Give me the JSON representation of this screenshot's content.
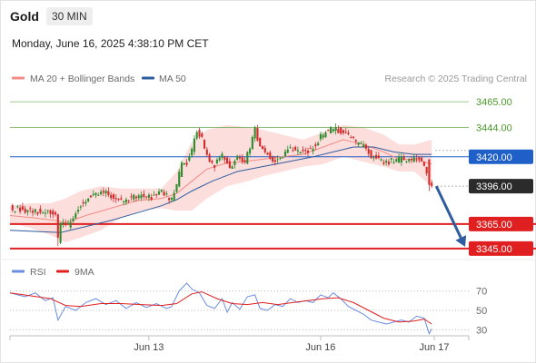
{
  "header": {
    "symbol": "Gold",
    "timeframe": "30 MIN",
    "datetime": "Monday, June 16, 2025 4:38:10 PM CET"
  },
  "source": "Research © 2025 Trading Central",
  "colors": {
    "ma20": "#f28b86",
    "ma50": "#2f5c9e",
    "band_fill": "#fbd3d0",
    "green_level": "#4a9a2a",
    "blue_level": "#1f5fc8",
    "red_level": "#e02020",
    "current": "#2b2b2b",
    "bull": "#2e8b2e",
    "bear": "#d32b2b",
    "arrow": "#2f5c9e",
    "rsi": "#6b8ee0",
    "rsi_ma": "#e02020"
  },
  "chart_data": [
    {
      "type": "candlestick",
      "title": "",
      "legend": [
        {
          "name": "MA 20 + Bollinger Bands",
          "color": "#f28b86"
        },
        {
          "name": "MA 50",
          "color": "#2f5c9e"
        }
      ],
      "y_axis_side": "right",
      "ylim": [
        3336,
        3474
      ],
      "levels": [
        {
          "value": 3465.0,
          "label": "3465.00",
          "kind": "resistance-minor",
          "color": "#4a9a2a"
        },
        {
          "value": 3444.0,
          "label": "3444.00",
          "kind": "resistance-minor",
          "color": "#4a9a2a"
        },
        {
          "value": 3420.0,
          "label": "3420.00",
          "kind": "pivot",
          "color": "#1f5fc8"
        },
        {
          "value": 3396.0,
          "label": "3396.00",
          "kind": "last-price",
          "color": "#2b2b2b"
        },
        {
          "value": 3365.0,
          "label": "3365.00",
          "kind": "target",
          "color": "#e02020"
        },
        {
          "value": 3345.0,
          "label": "3345.00",
          "kind": "target",
          "color": "#e02020"
        }
      ],
      "x_ticks": [
        "Jun 13",
        "Jun 16",
        "Jun 17"
      ],
      "projection": {
        "from": 3396.0,
        "to": 3345.0,
        "direction": "down"
      },
      "price_path": [
        [
          0,
          3378
        ],
        [
          5,
          3377
        ],
        [
          10,
          3376
        ],
        [
          15,
          3374
        ],
        [
          18,
          3372
        ],
        [
          19,
          3352
        ],
        [
          20,
          3366
        ],
        [
          23,
          3364
        ],
        [
          25,
          3370
        ],
        [
          29,
          3384
        ],
        [
          33,
          3390
        ],
        [
          37,
          3391
        ],
        [
          43,
          3384
        ],
        [
          47,
          3386
        ],
        [
          51,
          3388
        ],
        [
          56,
          3387
        ],
        [
          60,
          3392
        ],
        [
          64,
          3384
        ],
        [
          66,
          3398
        ],
        [
          68,
          3413
        ],
        [
          70,
          3415
        ],
        [
          72,
          3426
        ],
        [
          74,
          3440
        ],
        [
          76,
          3434
        ],
        [
          78,
          3420
        ],
        [
          81,
          3413
        ],
        [
          84,
          3420
        ],
        [
          87,
          3412
        ],
        [
          90,
          3420
        ],
        [
          93,
          3416
        ],
        [
          95,
          3428
        ],
        [
          97,
          3442
        ],
        [
          99,
          3428
        ],
        [
          102,
          3422
        ],
        [
          105,
          3416
        ],
        [
          108,
          3421
        ],
        [
          111,
          3428
        ],
        [
          114,
          3424
        ],
        [
          117,
          3424
        ],
        [
          120,
          3428
        ],
        [
          123,
          3436
        ],
        [
          125,
          3440
        ],
        [
          128,
          3443
        ],
        [
          131,
          3441
        ],
        [
          134,
          3436
        ],
        [
          137,
          3432
        ],
        [
          140,
          3428
        ],
        [
          143,
          3421
        ],
        [
          146,
          3418
        ],
        [
          149,
          3416
        ],
        [
          152,
          3417
        ],
        [
          155,
          3418
        ],
        [
          158,
          3417
        ],
        [
          161,
          3420
        ],
        [
          164,
          3414
        ],
        [
          166,
          3397
        ],
        [
          167,
          3396
        ]
      ],
      "ma20_path": [
        [
          0,
          3372
        ],
        [
          10,
          3370
        ],
        [
          18,
          3368
        ],
        [
          22,
          3366
        ],
        [
          30,
          3372
        ],
        [
          40,
          3378
        ],
        [
          50,
          3384
        ],
        [
          60,
          3386
        ],
        [
          66,
          3390
        ],
        [
          72,
          3400
        ],
        [
          78,
          3410
        ],
        [
          86,
          3415
        ],
        [
          92,
          3416
        ],
        [
          100,
          3418
        ],
        [
          108,
          3420
        ],
        [
          116,
          3422
        ],
        [
          124,
          3428
        ],
        [
          132,
          3434
        ],
        [
          140,
          3430
        ],
        [
          148,
          3424
        ],
        [
          154,
          3418
        ],
        [
          160,
          3418
        ],
        [
          167,
          3414
        ]
      ],
      "band_upper": [
        [
          0,
          3380
        ],
        [
          8,
          3382
        ],
        [
          16,
          3382
        ],
        [
          22,
          3386
        ],
        [
          28,
          3392
        ],
        [
          36,
          3396
        ],
        [
          44,
          3394
        ],
        [
          52,
          3394
        ],
        [
          60,
          3394
        ],
        [
          66,
          3408
        ],
        [
          72,
          3432
        ],
        [
          78,
          3442
        ],
        [
          86,
          3446
        ],
        [
          94,
          3444
        ],
        [
          100,
          3442
        ],
        [
          108,
          3438
        ],
        [
          116,
          3434
        ],
        [
          124,
          3440
        ],
        [
          132,
          3446
        ],
        [
          140,
          3444
        ],
        [
          148,
          3438
        ],
        [
          154,
          3430
        ],
        [
          160,
          3430
        ],
        [
          167,
          3434
        ]
      ],
      "band_lower": [
        [
          0,
          3366
        ],
        [
          8,
          3362
        ],
        [
          16,
          3356
        ],
        [
          22,
          3350
        ],
        [
          28,
          3354
        ],
        [
          36,
          3360
        ],
        [
          44,
          3370
        ],
        [
          52,
          3376
        ],
        [
          60,
          3378
        ],
        [
          66,
          3376
        ],
        [
          72,
          3376
        ],
        [
          78,
          3386
        ],
        [
          86,
          3396
        ],
        [
          94,
          3400
        ],
        [
          100,
          3404
        ],
        [
          108,
          3408
        ],
        [
          116,
          3412
        ],
        [
          124,
          3414
        ],
        [
          132,
          3420
        ],
        [
          140,
          3416
        ],
        [
          148,
          3412
        ],
        [
          154,
          3408
        ],
        [
          160,
          3408
        ],
        [
          167,
          3396
        ]
      ],
      "ma50_path": [
        [
          0,
          3360
        ],
        [
          10,
          3359
        ],
        [
          20,
          3358
        ],
        [
          30,
          3363
        ],
        [
          40,
          3368
        ],
        [
          50,
          3374
        ],
        [
          60,
          3380
        ],
        [
          66,
          3385
        ],
        [
          72,
          3392
        ],
        [
          80,
          3400
        ],
        [
          90,
          3408
        ],
        [
          100,
          3412
        ],
        [
          110,
          3416
        ],
        [
          120,
          3420
        ],
        [
          128,
          3424
        ],
        [
          136,
          3428
        ],
        [
          144,
          3428
        ],
        [
          152,
          3424
        ],
        [
          160,
          3422
        ],
        [
          167,
          3422
        ]
      ]
    },
    {
      "type": "line",
      "title": "",
      "legend": [
        {
          "name": "RSI",
          "color": "#6b8ee0"
        },
        {
          "name": "9MA",
          "color": "#e02020"
        }
      ],
      "ylim": [
        22,
        78
      ],
      "y_ticks": [
        70,
        50,
        30
      ],
      "rsi_path": [
        [
          0,
          68
        ],
        [
          6,
          64
        ],
        [
          10,
          68
        ],
        [
          14,
          60
        ],
        [
          17,
          63
        ],
        [
          19,
          40
        ],
        [
          22,
          54
        ],
        [
          26,
          50
        ],
        [
          30,
          58
        ],
        [
          34,
          62
        ],
        [
          38,
          56
        ],
        [
          42,
          60
        ],
        [
          46,
          52
        ],
        [
          50,
          58
        ],
        [
          54,
          53
        ],
        [
          58,
          57
        ],
        [
          62,
          52
        ],
        [
          64,
          54
        ],
        [
          67,
          70
        ],
        [
          70,
          78
        ],
        [
          72,
          72
        ],
        [
          75,
          68
        ],
        [
          78,
          55
        ],
        [
          81,
          52
        ],
        [
          84,
          62
        ],
        [
          86,
          48
        ],
        [
          88,
          58
        ],
        [
          91,
          51
        ],
        [
          94,
          64
        ],
        [
          97,
          66
        ],
        [
          99,
          52
        ],
        [
          102,
          50
        ],
        [
          105,
          56
        ],
        [
          108,
          54
        ],
        [
          111,
          62
        ],
        [
          114,
          58
        ],
        [
          117,
          60
        ],
        [
          120,
          58
        ],
        [
          123,
          66
        ],
        [
          126,
          63
        ],
        [
          128,
          68
        ],
        [
          131,
          62
        ],
        [
          134,
          54
        ],
        [
          137,
          50
        ],
        [
          140,
          46
        ],
        [
          143,
          40
        ],
        [
          146,
          38
        ],
        [
          149,
          36
        ],
        [
          152,
          38
        ],
        [
          155,
          40
        ],
        [
          158,
          38
        ],
        [
          161,
          44
        ],
        [
          164,
          42
        ],
        [
          166,
          26
        ],
        [
          167,
          31
        ]
      ],
      "ma_path": [
        [
          0,
          68
        ],
        [
          8,
          65
        ],
        [
          16,
          62
        ],
        [
          22,
          55
        ],
        [
          28,
          54
        ],
        [
          36,
          57
        ],
        [
          44,
          57
        ],
        [
          52,
          56
        ],
        [
          60,
          55
        ],
        [
          66,
          57
        ],
        [
          72,
          67
        ],
        [
          76,
          69
        ],
        [
          82,
          62
        ],
        [
          88,
          57
        ],
        [
          94,
          56
        ],
        [
          100,
          58
        ],
        [
          106,
          56
        ],
        [
          112,
          58
        ],
        [
          118,
          60
        ],
        [
          124,
          62
        ],
        [
          130,
          63
        ],
        [
          136,
          58
        ],
        [
          142,
          50
        ],
        [
          148,
          42
        ],
        [
          154,
          38
        ],
        [
          160,
          39
        ],
        [
          164,
          41
        ],
        [
          167,
          36
        ]
      ]
    }
  ]
}
